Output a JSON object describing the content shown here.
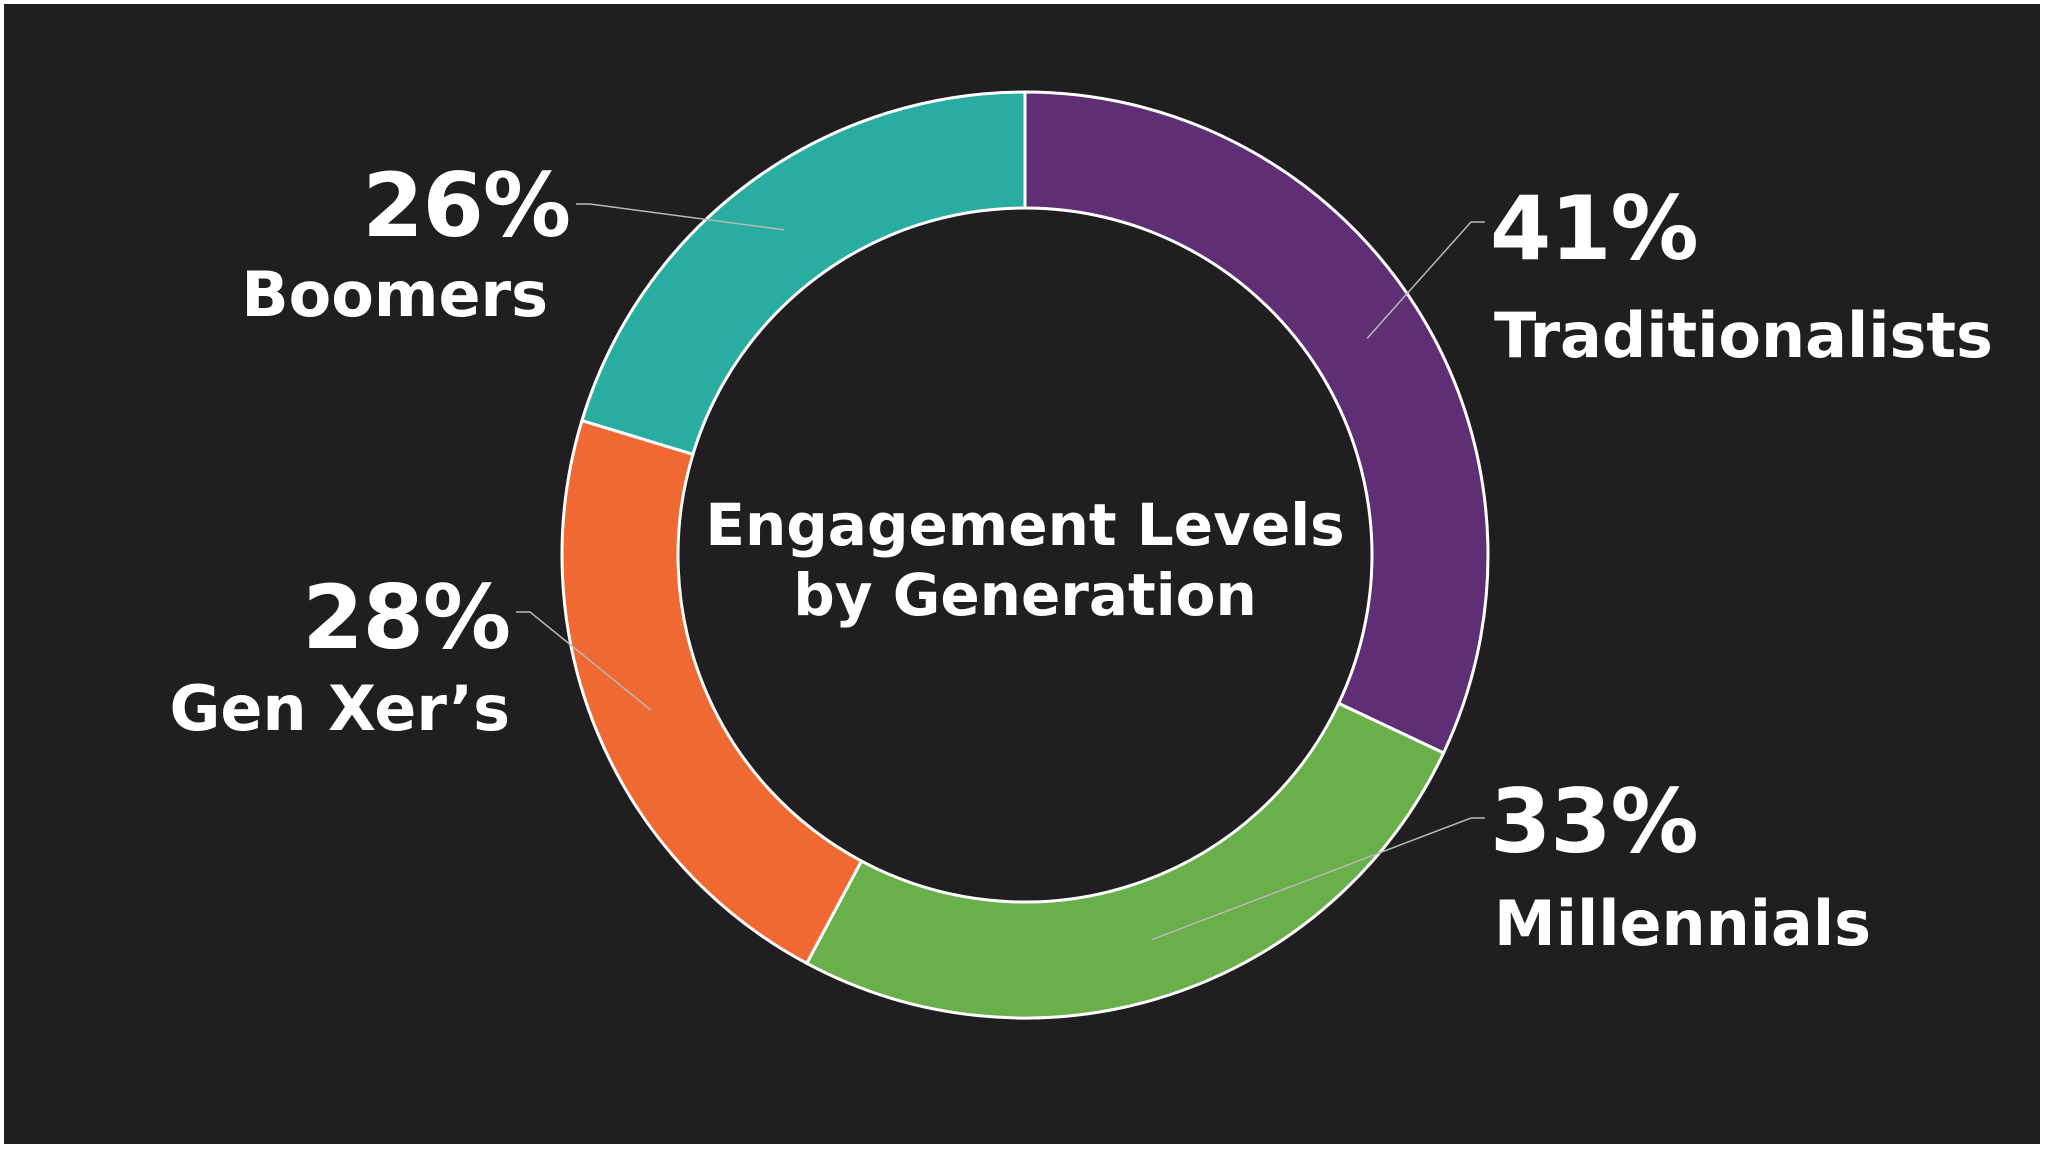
{
  "chart_data": {
    "type": "pie",
    "style": "donut",
    "title": "Engagement Levels by Generation",
    "slices": [
      {
        "category": "Traditionalists",
        "value": 41,
        "label": "41%",
        "color": "#5f2e75"
      },
      {
        "category": "Millennials",
        "value": 33,
        "label": "33%",
        "color": "#6ab04a"
      },
      {
        "category": "Gen Xer’s",
        "value": 28,
        "label": "28%",
        "color": "#f06832"
      },
      {
        "category": "Boomers",
        "value": 26,
        "label": "26%",
        "color": "#2aada1"
      }
    ],
    "background_color": "#211e21",
    "label_color": "#ffffff"
  }
}
